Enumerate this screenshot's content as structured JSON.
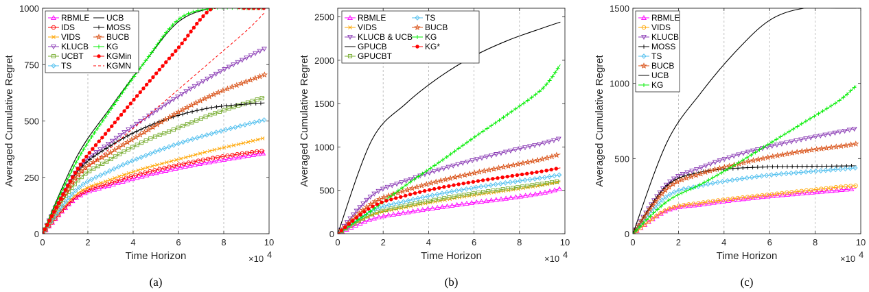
{
  "colors": {
    "RBMLE": "#ff00ff",
    "IDS": "#ff0000",
    "VIDS": "#ffa500",
    "KLUCB": "#8b3db5",
    "UCBT": "#77ac30",
    "TS": "#4dbeee",
    "UCB": "#000000",
    "MOSS": "#000000",
    "BUCB": "#d95319",
    "KG": "#00ee00",
    "KGMin": "#ff0000",
    "KGMN": "#ff0000",
    "KG*": "#ff0000",
    "GPUCB": "#000000",
    "GPUCBT": "#77ac30",
    "KLUCB & UCB": "#8b3db5"
  },
  "chart_data": [
    {
      "type": "line",
      "panel_label": "(a)",
      "xlabel": "Time Horizon",
      "ylabel": "Averaged Cumulative Regret",
      "x_multiplier": "×10",
      "x_multiplier_exp": "4",
      "xlim": [
        0,
        10
      ],
      "ylim": [
        0,
        1000
      ],
      "xticks": [
        "0",
        "2",
        "4",
        "6",
        "8",
        "10"
      ],
      "yticks": [
        "0",
        "250",
        "500",
        "750",
        "1000"
      ],
      "grid": "vertical dashed",
      "legend_position": "top-left",
      "legend_columns": 2,
      "series": [
        {
          "name": "RBMLE",
          "marker": "triangle-up",
          "values": [
            0,
            160,
            215,
            257,
            292,
            320,
            345,
            358
          ]
        },
        {
          "name": "IDS",
          "marker": "circle",
          "values": [
            0,
            165,
            225,
            270,
            305,
            335,
            358,
            368
          ]
        },
        {
          "name": "VIDS",
          "marker": "x",
          "values": [
            0,
            175,
            240,
            290,
            330,
            370,
            405,
            425
          ]
        },
        {
          "name": "KLUCB",
          "marker": "triangle-down",
          "values": [
            0,
            280,
            405,
            510,
            610,
            700,
            780,
            820
          ]
        },
        {
          "name": "UCBT",
          "marker": "square",
          "values": [
            0,
            230,
            330,
            410,
            470,
            530,
            580,
            605
          ]
        },
        {
          "name": "TS",
          "marker": "diamond",
          "values": [
            0,
            195,
            280,
            345,
            400,
            445,
            485,
            505
          ]
        },
        {
          "name": "UCB",
          "marker": "none",
          "values": [
            0,
            340,
            560,
            760,
            940,
            1000,
            1000,
            1000
          ]
        },
        {
          "name": "MOSS",
          "marker": "plus",
          "values": [
            0,
            270,
            390,
            470,
            525,
            560,
            575,
            580
          ]
        },
        {
          "name": "BUCB",
          "marker": "star",
          "values": [
            0,
            255,
            360,
            450,
            540,
            615,
            675,
            705
          ]
        },
        {
          "name": "KG",
          "marker": "plus",
          "values": [
            0,
            320,
            550,
            760,
            950,
            1000,
            1000,
            1000
          ]
        },
        {
          "name": "KGMin",
          "marker": "filled-circle",
          "values": [
            0,
            280,
            470,
            650,
            825,
            1000,
            1000,
            1000
          ]
        },
        {
          "name": "KGMN",
          "marker": "dashed",
          "values": [
            0,
            240,
            380,
            510,
            640,
            770,
            900,
            980
          ]
        }
      ],
      "x": [
        0,
        1.5,
        3,
        4.5,
        6,
        7.5,
        9,
        9.8
      ]
    },
    {
      "type": "line",
      "panel_label": "(b)",
      "xlabel": "Time Horizon",
      "ylabel": "Averaged Cumulative Regret",
      "x_multiplier": "×10",
      "x_multiplier_exp": "4",
      "xlim": [
        0,
        10
      ],
      "ylim": [
        0,
        2600
      ],
      "xticks": [
        "0",
        "2",
        "4",
        "6",
        "8",
        "10"
      ],
      "yticks": [
        "0",
        "500",
        "1000",
        "1500",
        "2000",
        "2500"
      ],
      "grid": "vertical dashed",
      "legend_position": "top-left",
      "legend_columns": 2,
      "series": [
        {
          "name": "RBMLE",
          "marker": "triangle-up",
          "values": [
            0,
            170,
            245,
            305,
            360,
            410,
            470,
            520
          ]
        },
        {
          "name": "VIDS",
          "marker": "x",
          "values": [
            0,
            215,
            305,
            380,
            445,
            500,
            560,
            600
          ]
        },
        {
          "name": "KLUCB & UCB",
          "marker": "triangle-down",
          "values": [
            0,
            440,
            610,
            740,
            850,
            950,
            1040,
            1100
          ]
        },
        {
          "name": "GPUCB",
          "marker": "none",
          "values": [
            0,
            1080,
            1500,
            1810,
            2050,
            2230,
            2370,
            2440
          ]
        },
        {
          "name": "GPUCBT",
          "marker": "square",
          "values": [
            0,
            225,
            325,
            400,
            465,
            520,
            575,
            610
          ]
        },
        {
          "name": "TS",
          "marker": "diamond",
          "values": [
            0,
            265,
            375,
            460,
            530,
            590,
            645,
            680
          ]
        },
        {
          "name": "BUCB",
          "marker": "star",
          "values": [
            0,
            350,
            500,
            610,
            700,
            780,
            860,
            920
          ]
        },
        {
          "name": "KG",
          "marker": "plus",
          "values": [
            0,
            270,
            560,
            830,
            1110,
            1380,
            1670,
            1950
          ]
        },
        {
          "name": "KG*",
          "marker": "filled-circle",
          "values": [
            0,
            310,
            440,
            530,
            600,
            660,
            720,
            760
          ]
        }
      ],
      "x": [
        0,
        1.5,
        3,
        4.5,
        6,
        7.5,
        9,
        9.8
      ]
    },
    {
      "type": "line",
      "panel_label": "(c)",
      "xlabel": "Time Horizon",
      "ylabel": "Averaged Cumulative Regret",
      "x_multiplier": "×10",
      "x_multiplier_exp": "4",
      "xlim": [
        0,
        10
      ],
      "ylim": [
        0,
        1500
      ],
      "xticks": [
        "0",
        "2",
        "4",
        "6",
        "8",
        "10"
      ],
      "yticks": [
        "0",
        "500",
        "1000",
        "1500"
      ],
      "grid": "vertical dashed",
      "legend_position": "top-left",
      "legend_columns": 1,
      "series": [
        {
          "name": "RBMLE",
          "marker": "triangle-up",
          "values": [
            0,
            155,
            195,
            225,
            250,
            270,
            290,
            300
          ]
        },
        {
          "name": "VIDS",
          "marker": "circle",
          "values": [
            0,
            160,
            205,
            235,
            260,
            285,
            310,
            320
          ]
        },
        {
          "name": "KLUCB",
          "marker": "triangle-down",
          "values": [
            0,
            330,
            440,
            520,
            580,
            630,
            675,
            700
          ]
        },
        {
          "name": "MOSS",
          "marker": "plus",
          "values": [
            0,
            320,
            410,
            435,
            445,
            448,
            450,
            452
          ]
        },
        {
          "name": "TS",
          "marker": "diamond",
          "values": [
            0,
            250,
            320,
            360,
            390,
            410,
            428,
            438
          ]
        },
        {
          "name": "BUCB",
          "marker": "star",
          "values": [
            0,
            300,
            400,
            460,
            510,
            550,
            580,
            598
          ]
        },
        {
          "name": "UCB",
          "marker": "none",
          "values": [
            0,
            610,
            940,
            1210,
            1420,
            1500,
            1500,
            1500
          ]
        },
        {
          "name": "KG",
          "marker": "plus",
          "values": [
            0,
            215,
            330,
            460,
            600,
            740,
            880,
            985
          ]
        }
      ],
      "x": [
        0,
        1.5,
        3,
        4.5,
        6,
        7.5,
        9,
        9.8
      ]
    }
  ]
}
